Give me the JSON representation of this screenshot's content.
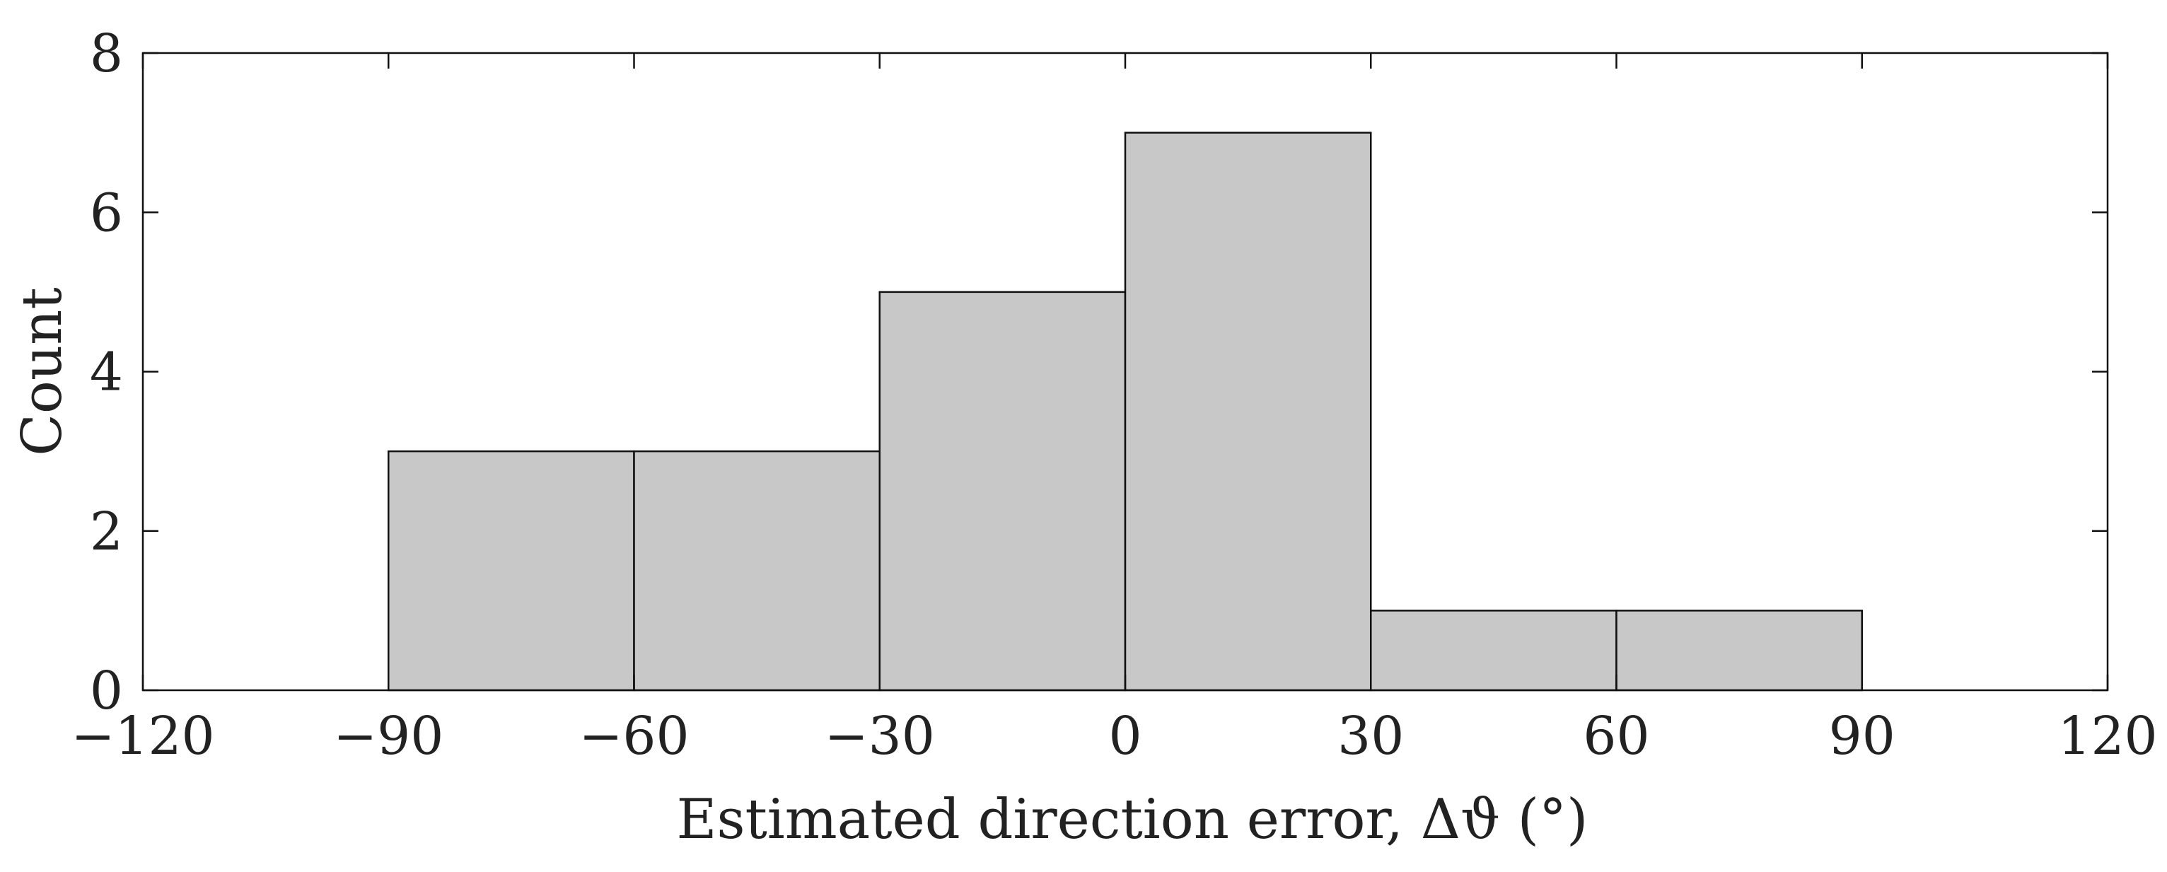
{
  "chart_data": {
    "type": "bar",
    "subtype": "histogram",
    "bins": [
      {
        "from": -90,
        "to": -60,
        "count": 3
      },
      {
        "from": -60,
        "to": -30,
        "count": 3
      },
      {
        "from": -30,
        "to": 0,
        "count": 5
      },
      {
        "from": 0,
        "to": 30,
        "count": 7
      },
      {
        "from": 30,
        "to": 60,
        "count": 1
      },
      {
        "from": 60,
        "to": 90,
        "count": 1
      }
    ],
    "xlabel": "Estimated direction error, Δϑ (°)",
    "ylabel": "Count",
    "xlim": [
      -120,
      120
    ],
    "ylim": [
      0,
      8
    ],
    "xticks": [
      -120,
      -90,
      -60,
      -30,
      0,
      30,
      60,
      90,
      120
    ],
    "xtick_labels": [
      "−120",
      "−90",
      "−60",
      "−30",
      "0",
      "30",
      "60",
      "90",
      "120"
    ],
    "yticks": [
      0,
      2,
      4,
      6,
      8
    ],
    "ytick_labels": [
      "0",
      "2",
      "4",
      "6",
      "8"
    ],
    "grid": false,
    "legend": "none",
    "colors": {
      "bar_fill": "#c8c8c8",
      "bar_edge": "#111111",
      "axis": "#111111"
    }
  }
}
